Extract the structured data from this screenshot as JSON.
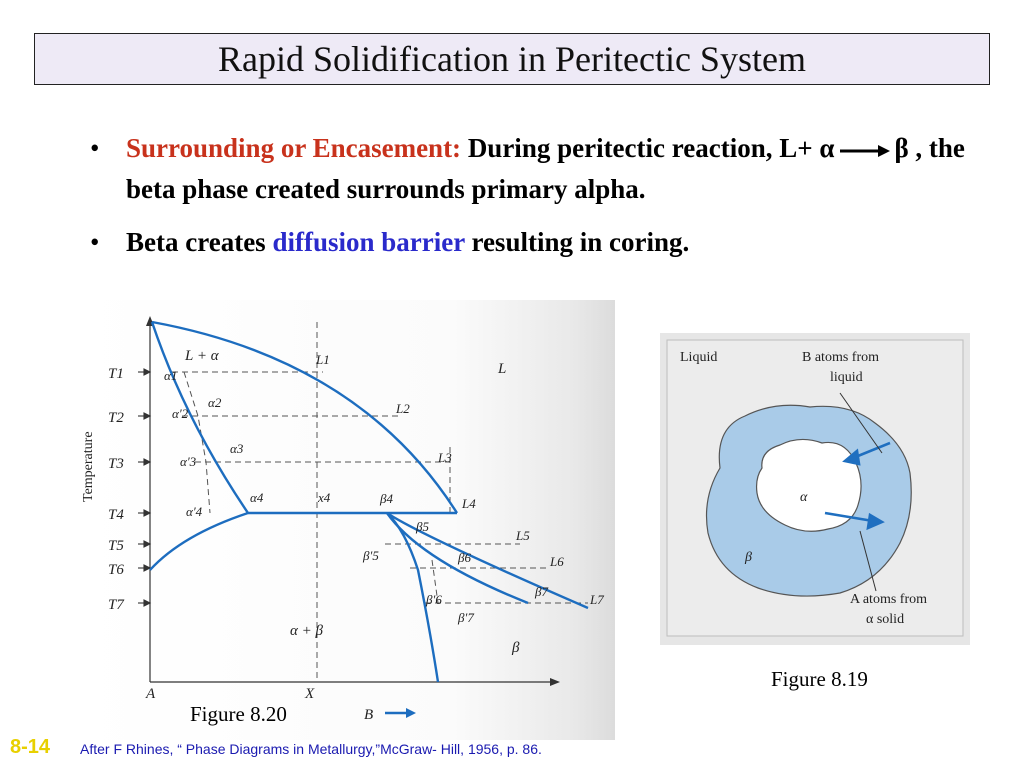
{
  "slide": {
    "title": "Rapid Solidification in Peritectic System",
    "slide_number": "8-14",
    "source_note": "After F Rhines, “ Phase Diagrams in Metallurgy,”McGraw- Hill, 1956, p. 86."
  },
  "bullets": [
    {
      "marker": "•",
      "heading": "Surrounding or Encasement:",
      "text_part1": "During peritectic reaction, L+ α",
      "text_part2": "β , the beta phase created surrounds primary alpha."
    },
    {
      "marker": "•",
      "text_before": "Beta creates",
      "highlight": "diffusion barrier",
      "text_after": "resulting in coring."
    }
  ],
  "figure_8_20": {
    "caption": "Figure 8.20",
    "y_axis_label": "Temperature",
    "temperatures": [
      "T1",
      "T2",
      "T3",
      "T4",
      "T5",
      "T6",
      "T7"
    ],
    "region_labels": {
      "liquid": "L",
      "l_plus_alpha": "L + α",
      "alpha_plus_beta": "α + β",
      "beta": "β"
    },
    "point_labels": {
      "alpha": [
        "α1",
        "α2",
        "α3",
        "α4"
      ],
      "alpha_prime": [
        "α′2",
        "α′3",
        "α′4"
      ],
      "liquid": [
        "L1",
        "L2",
        "L3",
        "L4",
        "L5",
        "L6",
        "L7"
      ],
      "beta": [
        "β4",
        "β5",
        "β6",
        "β7"
      ],
      "beta_prime": [
        "β′5",
        "β′6",
        "β′7"
      ],
      "x4": "x4"
    },
    "axis_labels": {
      "left": "A",
      "composition": "X",
      "right": "B"
    }
  },
  "figure_8_19": {
    "caption": "Figure 8.19",
    "labels": {
      "liquid": "Liquid",
      "b_atoms_line1": "B atoms from",
      "b_atoms_line2": "liquid",
      "alpha": "α",
      "beta": "β",
      "a_atoms_line1": "A atoms from",
      "a_atoms_line2": "α solid"
    },
    "colors": {
      "beta_shell": "#a9cbe8",
      "background": "#e6e6e6",
      "arrow": "#1f6fc0"
    }
  }
}
